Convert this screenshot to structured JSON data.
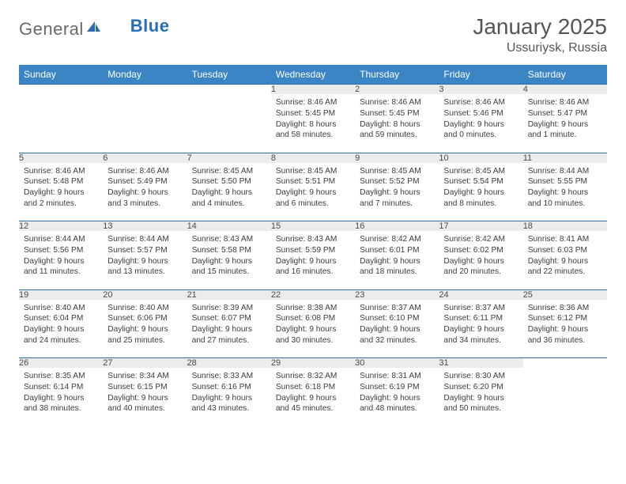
{
  "logo": {
    "part1": "General",
    "part2": "Blue"
  },
  "title": "January 2025",
  "location": "Ussuriysk, Russia",
  "colors": {
    "header_bg": "#3b85c5",
    "header_text": "#ffffff",
    "rule": "#2f6ea9",
    "daynum_bg": "#ececec",
    "text": "#3c3c3c",
    "logo_gray": "#6a6a6a",
    "logo_blue": "#2a6db5"
  },
  "day_headers": [
    "Sunday",
    "Monday",
    "Tuesday",
    "Wednesday",
    "Thursday",
    "Friday",
    "Saturday"
  ],
  "weeks": [
    {
      "nums": [
        "",
        "",
        "",
        "1",
        "2",
        "3",
        "4"
      ],
      "cells": [
        null,
        null,
        null,
        {
          "sunrise": "8:46 AM",
          "sunset": "5:45 PM",
          "daylight": "8 hours and 58 minutes."
        },
        {
          "sunrise": "8:46 AM",
          "sunset": "5:45 PM",
          "daylight": "8 hours and 59 minutes."
        },
        {
          "sunrise": "8:46 AM",
          "sunset": "5:46 PM",
          "daylight": "9 hours and 0 minutes."
        },
        {
          "sunrise": "8:46 AM",
          "sunset": "5:47 PM",
          "daylight": "9 hours and 1 minute."
        }
      ]
    },
    {
      "nums": [
        "5",
        "6",
        "7",
        "8",
        "9",
        "10",
        "11"
      ],
      "cells": [
        {
          "sunrise": "8:46 AM",
          "sunset": "5:48 PM",
          "daylight": "9 hours and 2 minutes."
        },
        {
          "sunrise": "8:46 AM",
          "sunset": "5:49 PM",
          "daylight": "9 hours and 3 minutes."
        },
        {
          "sunrise": "8:45 AM",
          "sunset": "5:50 PM",
          "daylight": "9 hours and 4 minutes."
        },
        {
          "sunrise": "8:45 AM",
          "sunset": "5:51 PM",
          "daylight": "9 hours and 6 minutes."
        },
        {
          "sunrise": "8:45 AM",
          "sunset": "5:52 PM",
          "daylight": "9 hours and 7 minutes."
        },
        {
          "sunrise": "8:45 AM",
          "sunset": "5:54 PM",
          "daylight": "9 hours and 8 minutes."
        },
        {
          "sunrise": "8:44 AM",
          "sunset": "5:55 PM",
          "daylight": "9 hours and 10 minutes."
        }
      ]
    },
    {
      "nums": [
        "12",
        "13",
        "14",
        "15",
        "16",
        "17",
        "18"
      ],
      "cells": [
        {
          "sunrise": "8:44 AM",
          "sunset": "5:56 PM",
          "daylight": "9 hours and 11 minutes."
        },
        {
          "sunrise": "8:44 AM",
          "sunset": "5:57 PM",
          "daylight": "9 hours and 13 minutes."
        },
        {
          "sunrise": "8:43 AM",
          "sunset": "5:58 PM",
          "daylight": "9 hours and 15 minutes."
        },
        {
          "sunrise": "8:43 AM",
          "sunset": "5:59 PM",
          "daylight": "9 hours and 16 minutes."
        },
        {
          "sunrise": "8:42 AM",
          "sunset": "6:01 PM",
          "daylight": "9 hours and 18 minutes."
        },
        {
          "sunrise": "8:42 AM",
          "sunset": "6:02 PM",
          "daylight": "9 hours and 20 minutes."
        },
        {
          "sunrise": "8:41 AM",
          "sunset": "6:03 PM",
          "daylight": "9 hours and 22 minutes."
        }
      ]
    },
    {
      "nums": [
        "19",
        "20",
        "21",
        "22",
        "23",
        "24",
        "25"
      ],
      "cells": [
        {
          "sunrise": "8:40 AM",
          "sunset": "6:04 PM",
          "daylight": "9 hours and 24 minutes."
        },
        {
          "sunrise": "8:40 AM",
          "sunset": "6:06 PM",
          "daylight": "9 hours and 25 minutes."
        },
        {
          "sunrise": "8:39 AM",
          "sunset": "6:07 PM",
          "daylight": "9 hours and 27 minutes."
        },
        {
          "sunrise": "8:38 AM",
          "sunset": "6:08 PM",
          "daylight": "9 hours and 30 minutes."
        },
        {
          "sunrise": "8:37 AM",
          "sunset": "6:10 PM",
          "daylight": "9 hours and 32 minutes."
        },
        {
          "sunrise": "8:37 AM",
          "sunset": "6:11 PM",
          "daylight": "9 hours and 34 minutes."
        },
        {
          "sunrise": "8:36 AM",
          "sunset": "6:12 PM",
          "daylight": "9 hours and 36 minutes."
        }
      ]
    },
    {
      "nums": [
        "26",
        "27",
        "28",
        "29",
        "30",
        "31",
        ""
      ],
      "cells": [
        {
          "sunrise": "8:35 AM",
          "sunset": "6:14 PM",
          "daylight": "9 hours and 38 minutes."
        },
        {
          "sunrise": "8:34 AM",
          "sunset": "6:15 PM",
          "daylight": "9 hours and 40 minutes."
        },
        {
          "sunrise": "8:33 AM",
          "sunset": "6:16 PM",
          "daylight": "9 hours and 43 minutes."
        },
        {
          "sunrise": "8:32 AM",
          "sunset": "6:18 PM",
          "daylight": "9 hours and 45 minutes."
        },
        {
          "sunrise": "8:31 AM",
          "sunset": "6:19 PM",
          "daylight": "9 hours and 48 minutes."
        },
        {
          "sunrise": "8:30 AM",
          "sunset": "6:20 PM",
          "daylight": "9 hours and 50 minutes."
        },
        null
      ]
    }
  ],
  "labels": {
    "sunrise": "Sunrise:",
    "sunset": "Sunset:",
    "daylight": "Daylight:"
  }
}
